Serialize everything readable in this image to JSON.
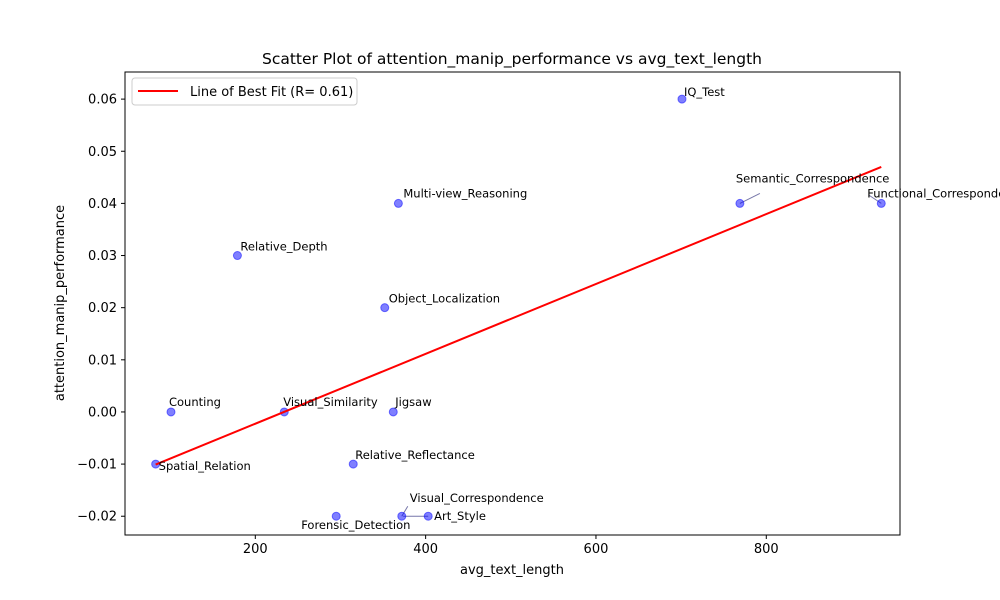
{
  "chart_data": {
    "type": "scatter",
    "title": "Scatter Plot of attention_manip_performance vs avg_text_length",
    "xlabel": "avg_text_length",
    "ylabel": "attention_manip_performance",
    "xlim": [
      47,
      957
    ],
    "ylim": [
      -0.0236,
      0.0652
    ],
    "x_ticks": [
      200,
      400,
      600,
      800
    ],
    "y_ticks": [
      -0.02,
      -0.01,
      0.0,
      0.01,
      0.02,
      0.03,
      0.04,
      0.05,
      0.06
    ],
    "x_tick_labels": [
      "200",
      "400",
      "600",
      "800"
    ],
    "y_tick_labels": [
      "−0.02",
      "−0.01",
      "0.00",
      "0.01",
      "0.02",
      "0.03",
      "0.04",
      "0.05",
      "0.06"
    ],
    "grid": false,
    "legend": {
      "position": "top-left",
      "entries": [
        "Line of Best Fit (R= 0.61)"
      ]
    },
    "points": [
      {
        "label": "IQ_Test",
        "x": 701,
        "y": 0.06
      },
      {
        "label": "Semantic_Correspondence",
        "x": 769,
        "y": 0.04
      },
      {
        "label": "Functional_Correspondence",
        "x": 935,
        "y": 0.04
      },
      {
        "label": "Multi-view_Reasoning",
        "x": 368,
        "y": 0.04
      },
      {
        "label": "Relative_Depth",
        "x": 179,
        "y": 0.03
      },
      {
        "label": "Object_Localization",
        "x": 352,
        "y": 0.02
      },
      {
        "label": "Counting",
        "x": 101,
        "y": 0.0
      },
      {
        "label": "Visual_Similarity",
        "x": 234,
        "y": 0.0
      },
      {
        "label": "Jigsaw",
        "x": 362,
        "y": 0.0
      },
      {
        "label": "Spatial_Relation",
        "x": 83,
        "y": -0.01
      },
      {
        "label": "Relative_Reflectance",
        "x": 315,
        "y": -0.01
      },
      {
        "label": "Forensic_Detection",
        "x": 295,
        "y": -0.02
      },
      {
        "label": "Visual_Correspondence",
        "x": 372,
        "y": -0.02
      },
      {
        "label": "Art_Style",
        "x": 403,
        "y": -0.02
      }
    ],
    "fit_line": {
      "x": [
        83,
        935
      ],
      "y": [
        -0.0101,
        0.047
      ]
    },
    "colors": {
      "points": "#0000ff",
      "fit_line": "#ff0000",
      "connector": "#7777aa"
    }
  }
}
